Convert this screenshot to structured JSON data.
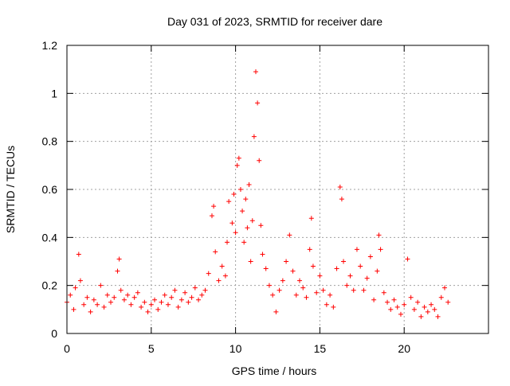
{
  "chart_data": {
    "type": "scatter",
    "title": "Day 031 of 2023, SRMTID for receiver dare",
    "xlabel": "GPS time / hours",
    "ylabel": "SRMTID / TECUs",
    "xlim": [
      0,
      25
    ],
    "ylim": [
      0,
      1.2
    ],
    "x_ticks": [
      0,
      5,
      10,
      15,
      20
    ],
    "y_ticks": [
      0,
      0.2,
      0.4,
      0.6,
      0.8,
      1,
      1.2
    ],
    "x_tick_labels": [
      "0",
      "5",
      "10",
      "15",
      "20"
    ],
    "y_tick_labels": [
      "0",
      "0.2",
      "0.4",
      "0.6",
      "0.8",
      "1",
      "1.2"
    ],
    "grid": true,
    "marker": "+",
    "series": [
      {
        "name": "SRMTID",
        "color": "#ff0000",
        "x": [
          0.0,
          0.2,
          0.4,
          0.5,
          0.7,
          0.8,
          1.0,
          1.2,
          1.4,
          1.6,
          1.8,
          2.0,
          2.2,
          2.4,
          2.6,
          2.8,
          3.0,
          3.1,
          3.2,
          3.4,
          3.6,
          3.8,
          4.0,
          4.2,
          4.4,
          4.6,
          4.8,
          5.0,
          5.2,
          5.4,
          5.6,
          5.8,
          6.0,
          6.2,
          6.4,
          6.6,
          6.8,
          7.0,
          7.2,
          7.4,
          7.6,
          7.8,
          8.0,
          8.2,
          8.4,
          8.6,
          8.7,
          8.8,
          9.0,
          9.2,
          9.4,
          9.5,
          9.6,
          9.8,
          9.9,
          10.0,
          10.1,
          10.2,
          10.3,
          10.4,
          10.5,
          10.6,
          10.7,
          10.8,
          10.9,
          11.0,
          11.1,
          11.2,
          11.3,
          11.4,
          11.5,
          11.6,
          11.8,
          12.0,
          12.2,
          12.4,
          12.6,
          12.8,
          13.0,
          13.2,
          13.4,
          13.6,
          13.8,
          14.0,
          14.2,
          14.4,
          14.5,
          14.6,
          14.8,
          15.0,
          15.2,
          15.4,
          15.6,
          15.8,
          16.0,
          16.2,
          16.3,
          16.4,
          16.6,
          16.8,
          17.0,
          17.2,
          17.4,
          17.6,
          17.8,
          18.0,
          18.2,
          18.4,
          18.5,
          18.6,
          18.8,
          19.0,
          19.2,
          19.4,
          19.6,
          19.8,
          20.0,
          20.2,
          20.4,
          20.6,
          20.8,
          21.0,
          21.2,
          21.4,
          21.6,
          21.8,
          22.0,
          22.2,
          22.4,
          22.6
        ],
        "y": [
          0.13,
          0.16,
          0.1,
          0.19,
          0.33,
          0.22,
          0.12,
          0.15,
          0.09,
          0.14,
          0.12,
          0.2,
          0.11,
          0.16,
          0.13,
          0.15,
          0.26,
          0.31,
          0.18,
          0.14,
          0.16,
          0.12,
          0.15,
          0.17,
          0.11,
          0.13,
          0.09,
          0.12,
          0.14,
          0.1,
          0.13,
          0.16,
          0.12,
          0.15,
          0.18,
          0.11,
          0.14,
          0.17,
          0.13,
          0.15,
          0.19,
          0.14,
          0.16,
          0.18,
          0.25,
          0.49,
          0.53,
          0.34,
          0.22,
          0.28,
          0.24,
          0.38,
          0.55,
          0.46,
          0.58,
          0.42,
          0.7,
          0.73,
          0.6,
          0.51,
          0.38,
          0.56,
          0.44,
          0.62,
          0.3,
          0.47,
          0.82,
          1.09,
          0.96,
          0.72,
          0.45,
          0.33,
          0.27,
          0.2,
          0.16,
          0.09,
          0.18,
          0.22,
          0.3,
          0.41,
          0.26,
          0.16,
          0.22,
          0.19,
          0.15,
          0.35,
          0.48,
          0.28,
          0.17,
          0.24,
          0.18,
          0.12,
          0.16,
          0.11,
          0.27,
          0.61,
          0.56,
          0.3,
          0.2,
          0.24,
          0.18,
          0.35,
          0.28,
          0.18,
          0.23,
          0.32,
          0.14,
          0.26,
          0.41,
          0.35,
          0.17,
          0.13,
          0.1,
          0.14,
          0.11,
          0.08,
          0.12,
          0.31,
          0.15,
          0.1,
          0.13,
          0.07,
          0.11,
          0.09,
          0.12,
          0.1,
          0.07,
          0.15,
          0.19,
          0.13
        ]
      }
    ]
  }
}
